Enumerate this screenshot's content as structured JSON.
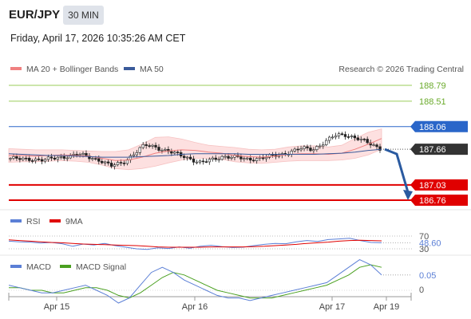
{
  "header": {
    "pair": "EUR/JPY",
    "timeframe": "30 MIN",
    "datetime": "Friday, April 17, 2026 10:35:26 AM CET"
  },
  "legend": {
    "ma20": "MA 20 + Bollinger Bands",
    "ma50": "MA 50",
    "credit": "Research © 2026 Trading Central"
  },
  "colors": {
    "ma20": "#f08080",
    "ma50": "#3a5a9a",
    "bands_fill": "#fde0e0",
    "resistance_green": "#9acd5a",
    "pivot_blue": "#2a66c9",
    "support_red": "#e00000",
    "current_price": "#333333",
    "rsi": "#5b7fd6",
    "rsi_ma": "#e00000",
    "macd": "#5b7fd6",
    "macd_signal": "#4aa020",
    "forecast_arrow": "#2a5aa0"
  },
  "chart_data": [
    {
      "type": "candlestick",
      "title": "EUR/JPY",
      "x_ticks": [
        "Apr 15",
        "Apr 16",
        "Apr 17",
        "Apr 19"
      ],
      "ylim": [
        186.6,
        188.9
      ],
      "series": [
        {
          "name": "MA 20 + Bollinger Bands",
          "values": [
            187.55,
            187.55,
            187.54,
            187.55,
            187.56,
            187.55,
            187.54,
            187.5,
            187.46,
            187.47,
            187.52,
            187.59,
            187.63,
            187.65,
            187.64,
            187.61,
            187.59,
            187.55,
            187.53,
            187.52,
            187.54,
            187.57,
            187.58,
            187.58,
            187.57,
            187.59,
            187.66,
            187.75,
            187.85
          ]
        },
        {
          "name": "MA 50",
          "values": [
            187.58,
            187.57,
            187.56,
            187.55,
            187.55,
            187.54,
            187.53,
            187.52,
            187.52,
            187.52,
            187.53,
            187.54,
            187.55,
            187.57,
            187.58,
            187.58,
            187.58,
            187.58,
            187.57,
            187.57,
            187.57,
            187.57,
            187.57,
            187.57,
            187.58,
            187.59,
            187.61,
            187.64,
            187.66
          ]
        }
      ],
      "bollinger_upper": [
        187.67,
        187.66,
        187.65,
        187.65,
        187.65,
        187.64,
        187.63,
        187.62,
        187.62,
        187.65,
        187.75,
        187.87,
        187.88,
        187.84,
        187.78,
        187.73,
        187.71,
        187.69,
        187.66,
        187.65,
        187.66,
        187.7,
        187.72,
        187.72,
        187.7,
        187.73,
        187.85,
        187.96,
        188.02
      ],
      "bollinger_lower": [
        187.43,
        187.44,
        187.44,
        187.45,
        187.46,
        187.45,
        187.43,
        187.38,
        187.32,
        187.3,
        187.32,
        187.36,
        187.42,
        187.47,
        187.5,
        187.5,
        187.48,
        187.44,
        187.42,
        187.41,
        187.43,
        187.45,
        187.46,
        187.46,
        187.46,
        187.47,
        187.5,
        187.56,
        187.66
      ],
      "close_path": [
        187.5,
        187.48,
        187.49,
        187.47,
        187.5,
        187.54,
        187.57,
        187.52,
        187.47,
        187.36,
        187.42,
        187.58,
        187.73,
        187.7,
        187.63,
        187.56,
        187.5,
        187.42,
        187.47,
        187.54,
        187.52,
        187.48,
        187.5,
        187.52,
        187.56,
        187.62,
        187.67,
        187.66,
        187.78,
        187.9,
        187.92,
        187.85,
        187.76,
        187.68
      ],
      "levels": [
        {
          "value": "188.79",
          "kind": "resistance"
        },
        {
          "value": "188.51",
          "kind": "resistance"
        },
        {
          "value": "188.06",
          "kind": "pivot"
        },
        {
          "value": "187.66",
          "kind": "current"
        },
        {
          "value": "187.03",
          "kind": "support"
        },
        {
          "value": "186.76",
          "kind": "support"
        }
      ],
      "forecast": {
        "from": 187.66,
        "to": 186.76
      }
    },
    {
      "type": "line",
      "legend": [
        "RSI",
        "9MA"
      ],
      "levels": [
        "70",
        "30"
      ],
      "current_value": "48.60",
      "ylim": [
        25,
        75
      ],
      "series": [
        {
          "name": "RSI",
          "values": [
            54,
            52,
            51,
            48,
            50,
            46,
            38,
            45,
            42,
            47,
            40,
            35,
            30,
            28,
            33,
            31,
            36,
            32,
            38,
            41,
            37,
            34,
            35,
            40,
            44,
            47,
            46,
            52,
            56,
            53,
            59,
            61,
            63,
            56,
            50,
            49
          ]
        },
        {
          "name": "9MA",
          "values": [
            58,
            56,
            54,
            52,
            50,
            49,
            47,
            45,
            44,
            43,
            42,
            41,
            40,
            38,
            36,
            35,
            35,
            35,
            35,
            36,
            36,
            36,
            36,
            37,
            38,
            40,
            42,
            44,
            47,
            49,
            51,
            54,
            56,
            57,
            56,
            55
          ]
        }
      ]
    },
    {
      "type": "line",
      "legend": [
        "MACD",
        "MACD Signal"
      ],
      "zero_label": "0",
      "current_value": "0.05",
      "ylim": [
        -0.15,
        0.2
      ],
      "series": [
        {
          "name": "MACD",
          "values": [
            0.02,
            0.01,
            0.0,
            -0.01,
            -0.01,
            0.0,
            0.01,
            0.02,
            0.0,
            -0.02,
            -0.05,
            -0.03,
            0.02,
            0.07,
            0.09,
            0.07,
            0.04,
            0.02,
            0.0,
            -0.02,
            -0.03,
            -0.03,
            -0.04,
            -0.03,
            -0.02,
            -0.01,
            0.0,
            0.01,
            0.02,
            0.03,
            0.06,
            0.09,
            0.12,
            0.1,
            0.06
          ]
        },
        {
          "name": "MACD Signal",
          "values": [
            0.01,
            0.01,
            0.0,
            0.0,
            -0.01,
            -0.01,
            0.0,
            0.01,
            0.01,
            0.0,
            -0.02,
            -0.03,
            -0.01,
            0.02,
            0.05,
            0.07,
            0.06,
            0.04,
            0.02,
            0.0,
            -0.01,
            -0.02,
            -0.03,
            -0.03,
            -0.03,
            -0.02,
            -0.01,
            0.0,
            0.01,
            0.02,
            0.04,
            0.06,
            0.09,
            0.1,
            0.09
          ]
        }
      ]
    }
  ]
}
